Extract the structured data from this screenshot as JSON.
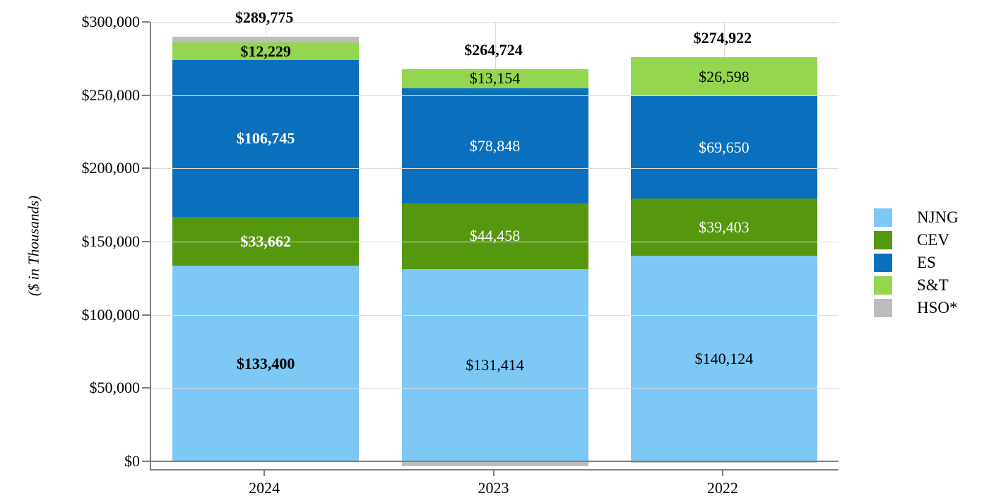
{
  "chart_data": {
    "type": "bar",
    "subtype": "stacked-column",
    "title": "",
    "ylabel": "($ in Thousands)",
    "xlabel": "",
    "ylim": [
      -5000,
      300000
    ],
    "ytick_step": 50000,
    "ytick_format": "$#,##0",
    "grid": "horizontal",
    "legend_position": "right",
    "categories": [
      "2024",
      "2023",
      "2022"
    ],
    "series": [
      {
        "name": "NJNG",
        "color": "#7DC8F5",
        "label_color": "#000000",
        "labeled": true,
        "values": [
          133400,
          131414,
          140124
        ]
      },
      {
        "name": "CEV",
        "color": "#55970E",
        "label_color": "#FFFFFF",
        "labeled": true,
        "values": [
          33662,
          44458,
          39403
        ]
      },
      {
        "name": "ES",
        "color": "#0A70BD",
        "label_color": "#FFFFFF",
        "labeled": true,
        "values": [
          106745,
          78848,
          69650
        ]
      },
      {
        "name": "S&T",
        "color": "#94D64F",
        "label_color": "#000000",
        "labeled": true,
        "values": [
          12229,
          13154,
          26598
        ]
      },
      {
        "name": "HSO*",
        "color": "#BDBDBD",
        "label_color": null,
        "labeled": false,
        "values": [
          3739,
          -3150,
          -853
        ]
      }
    ],
    "totals": [
      289775,
      264724,
      274922
    ],
    "bold_labels_category": "2024",
    "legend_entries": [
      "NJNG",
      "CEV",
      "ES",
      "S&T",
      "HSO*"
    ],
    "axis_color": "#808080",
    "gridline_color": "#DCDCDC"
  }
}
